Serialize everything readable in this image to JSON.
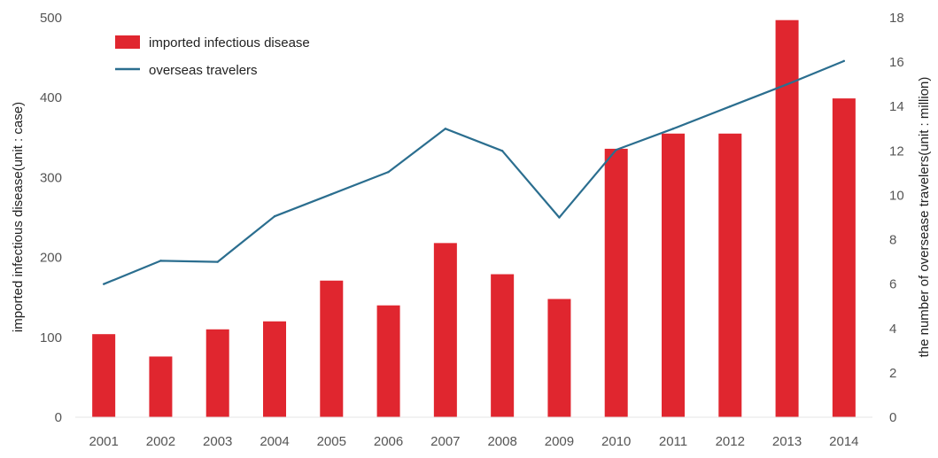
{
  "chart_data": {
    "type": "bar",
    "categories": [
      "2001",
      "2002",
      "2003",
      "2004",
      "2005",
      "2006",
      "2007",
      "2008",
      "2009",
      "2010",
      "2011",
      "2012",
      "2013",
      "2014"
    ],
    "series": [
      {
        "name": "imported infectious disease",
        "type": "bar",
        "axis": "left",
        "color": "#e0262f",
        "values": [
          104,
          76,
          110,
          120,
          171,
          140,
          218,
          179,
          148,
          336,
          355,
          355,
          497,
          399
        ]
      },
      {
        "name": "overseas travelers",
        "type": "line",
        "axis": "right",
        "color": "#2b6e8f",
        "values": [
          6.0,
          7.05,
          7.0,
          9.05,
          10.05,
          11.05,
          13.0,
          12.0,
          9.0,
          12.05,
          13.0,
          14.0,
          15.0,
          16.05
        ]
      }
    ],
    "ylabel": "imported infectious disease(unit : case)",
    "y2label": "the number of oversease travelers(unit : million)",
    "ylim": [
      0,
      500
    ],
    "y2lim": [
      0,
      18
    ],
    "yticks": [
      "0",
      "100",
      "200",
      "300",
      "400",
      "500"
    ],
    "y2ticks": [
      "0",
      "2",
      "4",
      "6",
      "8",
      "10",
      "12",
      "14",
      "16",
      "18"
    ],
    "legend_position": "top-left",
    "grid": false
  }
}
